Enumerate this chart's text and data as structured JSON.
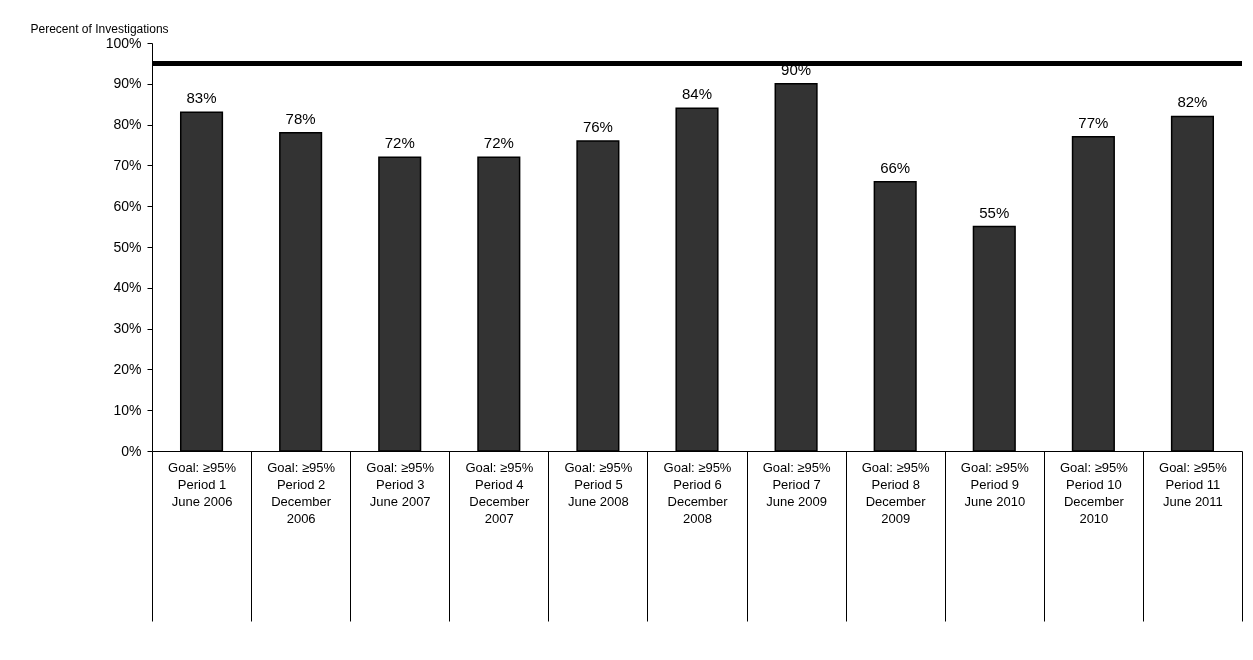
{
  "chart_data": {
    "type": "bar",
    "ylabel": "Perecent of  Investigations",
    "categories": [
      "Goal: ≥95%\n\nPeriod 1\nJune 2006",
      "Goal: ≥95%\n\nPeriod 2\nDecember\n2006",
      "Goal: ≥95%\n\nPeriod 3\nJune 2007",
      "Goal: ≥95%\n\nPeriod 4\nDecember\n2007",
      "Goal: ≥95%\n\nPeriod 5\nJune 2008",
      "Goal: ≥95%\n\nPeriod 6\nDecember\n2008",
      "Goal: ≥95%\n\nPeriod 7\nJune 2009",
      "Goal: ≥95%\n\nPeriod 8\nDecember\n2009",
      "Goal: ≥95%\n\nPeriod 9\nJune 2010",
      "Goal: ≥95%\n\nPeriod 10\nDecember\n2010",
      "Goal: ≥95%\n\nPeriod 11\nJune 2011"
    ],
    "values": [
      83,
      78,
      72,
      72,
      76,
      84,
      90,
      66,
      55,
      77,
      82
    ],
    "value_labels": [
      "83%",
      "78%",
      "72%",
      "72%",
      "76%",
      "84%",
      "90%",
      "66%",
      "55%",
      "77%",
      "82%"
    ],
    "color": "#333333",
    "ylim": [
      0,
      100
    ],
    "yticks": [
      {
        "value": 0,
        "label": "0%"
      },
      {
        "value": 10,
        "label": "10%"
      },
      {
        "value": 20,
        "label": "20%"
      },
      {
        "value": 30,
        "label": "30%"
      },
      {
        "value": 40,
        "label": "40%"
      },
      {
        "value": 50,
        "label": "50%"
      },
      {
        "value": 60,
        "label": "60%"
      },
      {
        "value": 70,
        "label": "70%"
      },
      {
        "value": 80,
        "label": "80%"
      },
      {
        "value": 90,
        "label": "90%"
      },
      {
        "value": 100,
        "label": "100%"
      }
    ],
    "ref_lines": [
      {
        "axis": "y",
        "value": 95,
        "color": "#000000"
      }
    ],
    "grid": false
  }
}
